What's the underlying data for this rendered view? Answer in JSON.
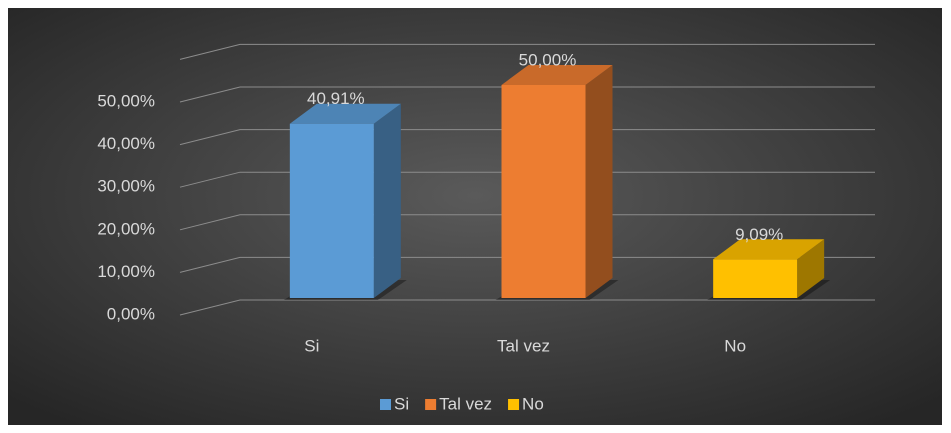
{
  "chart_data": {
    "type": "bar3d",
    "categories": [
      "Si",
      "Tal vez",
      "No"
    ],
    "values": [
      40.91,
      50,
      9.09
    ],
    "value_labels": [
      "40,91%",
      "50,00%",
      "9,09%"
    ],
    "colors": [
      "#5b9bd5",
      "#ed7d31",
      "#ffc000"
    ],
    "ylim": [
      0,
      60
    ],
    "yticks": [
      {
        "value": 0,
        "label": "0,00%"
      },
      {
        "value": 10,
        "label": "10,00%"
      },
      {
        "value": 20,
        "label": "20,00%"
      },
      {
        "value": 30,
        "label": "30,00%"
      },
      {
        "value": 40,
        "label": "40,00%"
      },
      {
        "value": 50,
        "label": "50,00%"
      }
    ],
    "grid": true,
    "legend": "bottom"
  }
}
